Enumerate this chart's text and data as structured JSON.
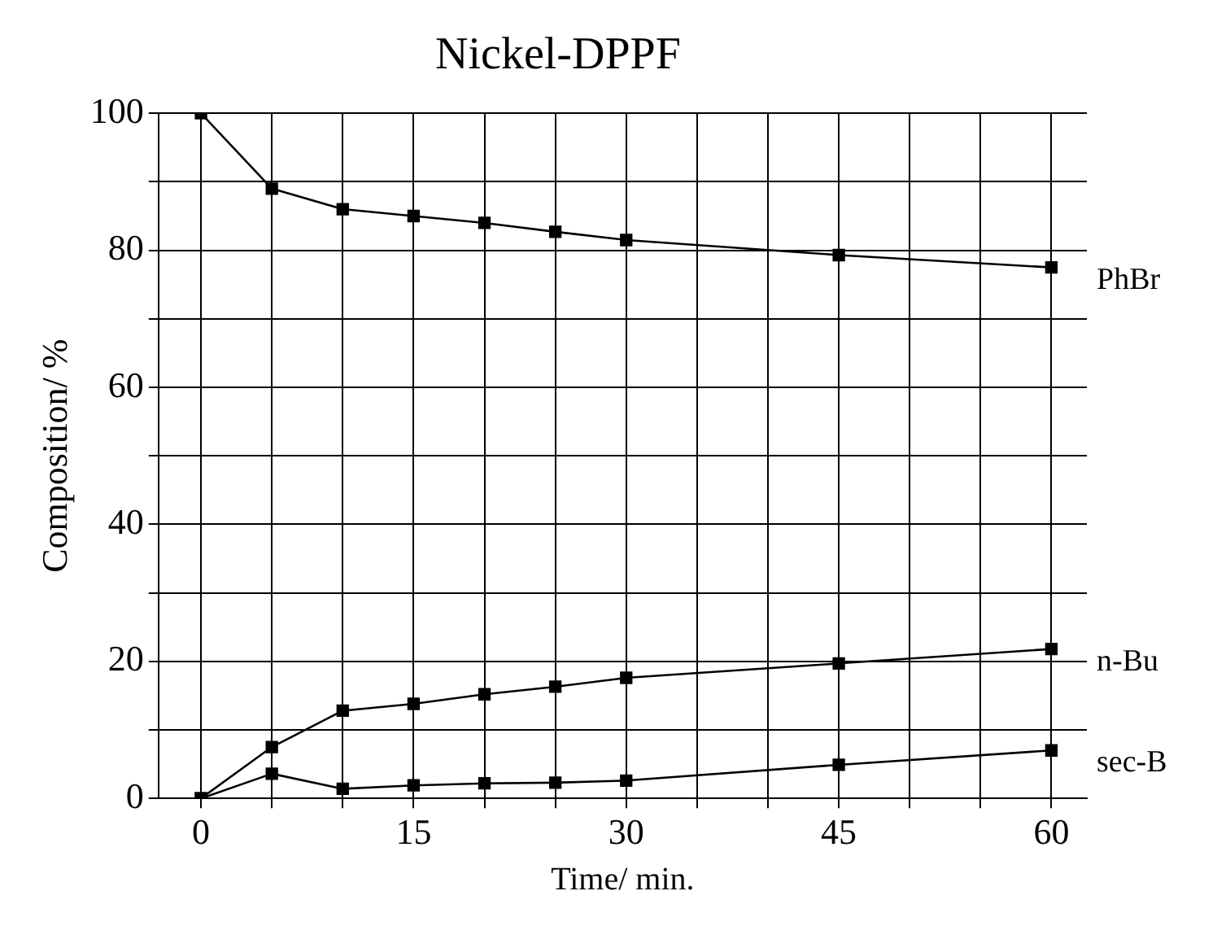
{
  "chart_data": {
    "type": "line",
    "title": "Nickel-DPPF",
    "xlabel": "Time/ min.",
    "ylabel": "Composition/ %",
    "x": [
      0,
      5,
      10,
      15,
      20,
      25,
      30,
      45,
      60
    ],
    "series": [
      {
        "name": "PhBr",
        "color": "#000000",
        "values": [
          100,
          89,
          86,
          85,
          84,
          82.7,
          81.5,
          79.3,
          77.5
        ]
      },
      {
        "name": "n-Bu",
        "color": "#000000",
        "values": [
          0,
          7.5,
          12.8,
          13.8,
          15.2,
          16.3,
          17.6,
          19.7,
          21.8
        ]
      },
      {
        "name": "sec-B",
        "color": "#000000",
        "values": [
          0,
          3.6,
          1.4,
          1.9,
          2.2,
          2.3,
          2.6,
          4.9,
          7
        ]
      }
    ],
    "xlim": [
      -3,
      62.5
    ],
    "ylim": [
      0,
      100
    ],
    "xticks": [
      0,
      {
        "value": 5,
        "label": null
      },
      {
        "value": 10,
        "label": null
      },
      15,
      {
        "value": 20,
        "label": null
      },
      {
        "value": 25,
        "label": null
      },
      30,
      {
        "value": 35,
        "label": null
      },
      {
        "value": 40,
        "label": null
      },
      45,
      {
        "value": 50,
        "label": null
      },
      {
        "value": 55,
        "label": null
      },
      60
    ],
    "yticks": [
      0,
      {
        "value": 10,
        "label": null
      },
      20,
      {
        "value": 30,
        "label": null
      },
      40,
      {
        "value": 50,
        "label": null
      },
      60,
      {
        "value": 70,
        "label": null
      },
      80,
      {
        "value": 90,
        "label": null
      },
      100
    ],
    "grid": true,
    "legend": false,
    "marker": "square",
    "line_style": "solid"
  }
}
